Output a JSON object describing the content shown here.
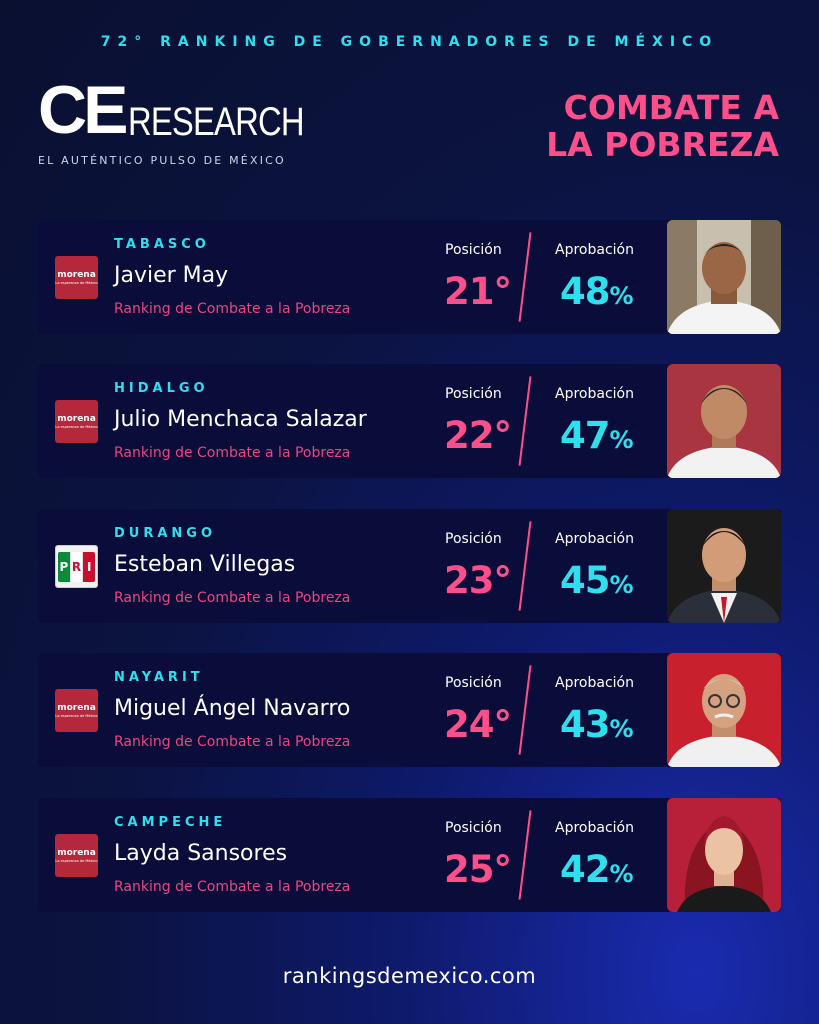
{
  "header": {
    "top_title": "72° RANKING DE GOBERNADORES DE MÉXICO",
    "logo_ce": "CE",
    "logo_research": "RESEARCH",
    "logo_sub": "EL AUTÉNTICO PULSO DE MÉXICO",
    "headline_line1": "COMBATE A",
    "headline_line2": "LA POBREZA"
  },
  "labels": {
    "position": "Posición",
    "approval": "Aprobación",
    "category": "Ranking de Combate a la Pobreza",
    "percent": "%"
  },
  "parties": {
    "morena_name": "morena",
    "morena_tag": "La esperanza de México",
    "pri_letters": [
      "P",
      "R",
      "I"
    ]
  },
  "governors": [
    {
      "state": "TABASCO",
      "name": "Javier May",
      "party": "morena",
      "position": "21°",
      "approval": "48"
    },
    {
      "state": "HIDALGO",
      "name": "Julio Menchaca Salazar",
      "party": "morena",
      "position": "22°",
      "approval": "47"
    },
    {
      "state": "DURANGO",
      "name": "Esteban Villegas",
      "party": "pri",
      "position": "23°",
      "approval": "45"
    },
    {
      "state": "NAYARIT",
      "name": "Miguel Ángel Navarro",
      "party": "morena",
      "position": "24°",
      "approval": "43"
    },
    {
      "state": "CAMPECHE",
      "name": "Layda Sansores",
      "party": "morena",
      "position": "25°",
      "approval": "42"
    }
  ],
  "footer": {
    "url": "rankingsdemexico.com"
  },
  "colors": {
    "accent_cyan": "#2ee0ee",
    "accent_pink": "#ff4f8b",
    "card_bg": "#0a0c3a",
    "morena_red": "#b5283b"
  }
}
